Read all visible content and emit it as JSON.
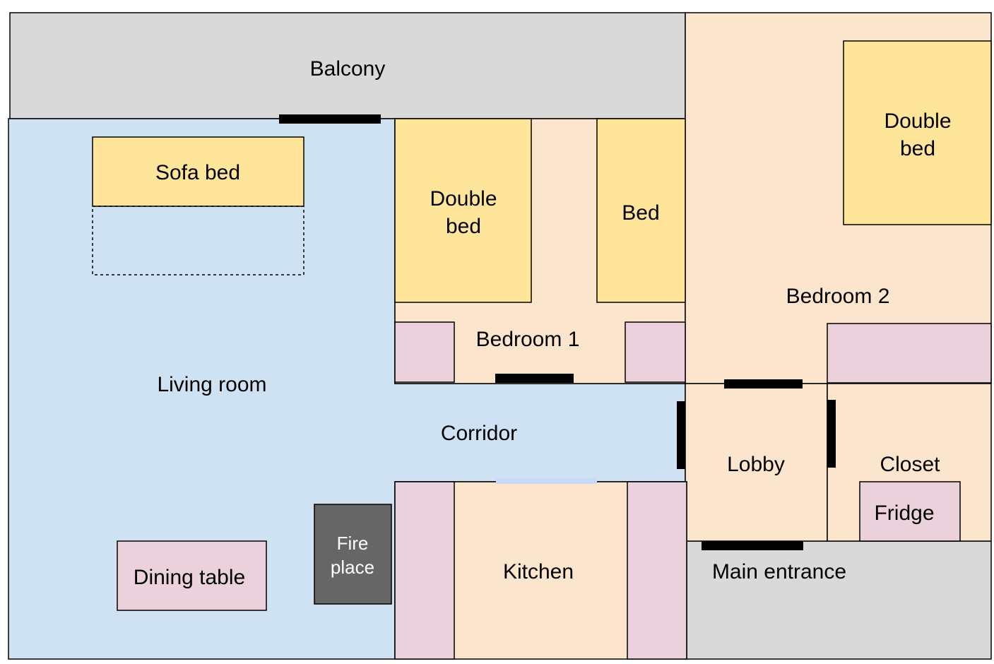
{
  "colors": {
    "outdoor": "#d9d9d9",
    "living": "#cfe2f3",
    "room": "#fce5cd",
    "bed": "#ffe599",
    "cabinet": "#ead1dc",
    "fireplace": "#666666",
    "door": "#000000",
    "window": "#c9daf8"
  },
  "labels": {
    "balcony": "Balcony",
    "sofa_bed": "Sofa bed",
    "double_bed_1_line1": "Double",
    "double_bed_1_line2": "bed",
    "bed": "Bed",
    "double_bed_2_line1": "Double",
    "double_bed_2_line2": "bed",
    "bedroom_1": "Bedroom 1",
    "bedroom_2": "Bedroom 2",
    "living_room": "Living room",
    "corridor": "Corridor",
    "lobby": "Lobby",
    "closet": "Closet",
    "fridge": "Fridge",
    "main_entrance": "Main entrance",
    "kitchen": "Kitchen",
    "fireplace_line1": "Fire",
    "fireplace_line2": "place",
    "dining_table": "Dining table"
  }
}
